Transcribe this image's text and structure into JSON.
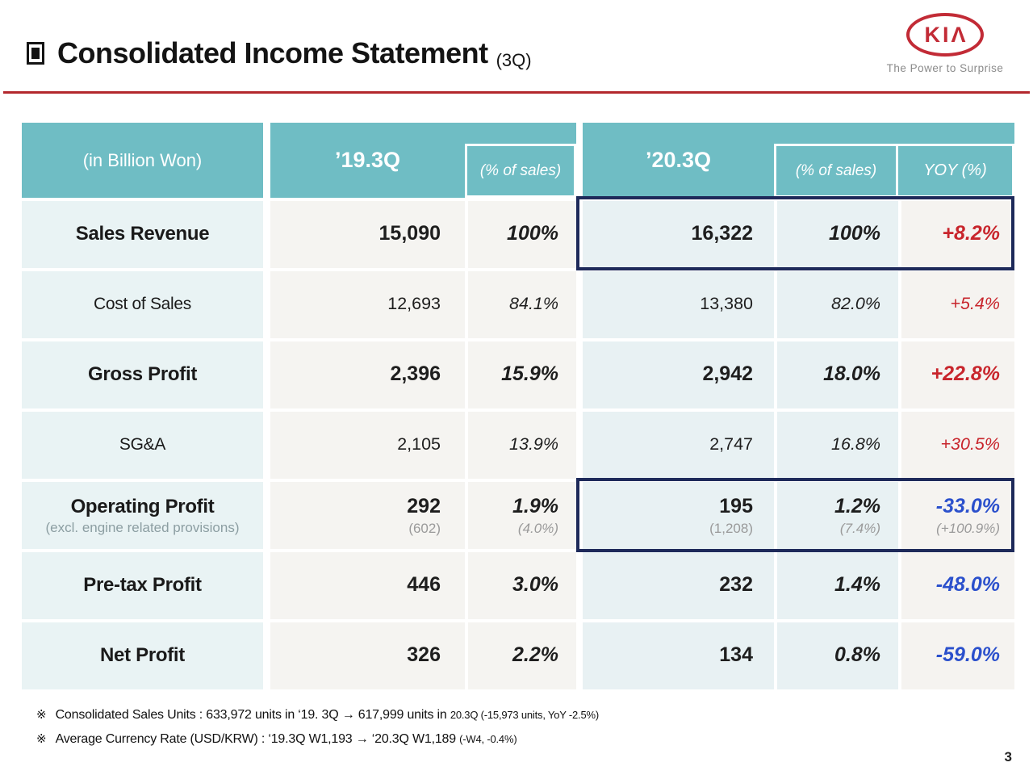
{
  "slide": {
    "title": "Consolidated Income Statement",
    "title_suffix": "(3Q)",
    "page_number": "3",
    "logo": {
      "text": "KIΛ",
      "tagline": "The Power to Surprise"
    }
  },
  "table": {
    "header": {
      "unit_label": "(in Billion Won)",
      "q19_label": "’19.3Q",
      "q19_pct_label": "(% of sales)",
      "q20_label": "’20.3Q",
      "q20_pct_label": "(% of sales)",
      "yoy_label": "YOY (%)"
    },
    "rows": [
      {
        "label": "Sales Revenue",
        "q19_value": "15,090",
        "q19_pct": "100%",
        "q20_value": "16,322",
        "q20_pct": "100%",
        "yoy": "+8.2%",
        "emphasis": true,
        "yoy_direction": "positive",
        "highlighted": true
      },
      {
        "label": "Cost of Sales",
        "q19_value": "12,693",
        "q19_pct": "84.1%",
        "q20_value": "13,380",
        "q20_pct": "82.0%",
        "yoy": "+5.4%",
        "emphasis": false,
        "yoy_direction": "positive",
        "highlighted": false
      },
      {
        "label": "Gross Profit",
        "q19_value": "2,396",
        "q19_pct": "15.9%",
        "q20_value": "2,942",
        "q20_pct": "18.0%",
        "yoy": "+22.8%",
        "emphasis": true,
        "yoy_direction": "positive",
        "highlighted": false
      },
      {
        "label": "SG&A",
        "q19_value": "2,105",
        "q19_pct": "13.9%",
        "q20_value": "2,747",
        "q20_pct": "16.8%",
        "yoy": "+30.5%",
        "emphasis": false,
        "yoy_direction": "positive",
        "highlighted": false
      },
      {
        "label": "Operating Profit",
        "sub_label": "(excl. engine related provisions)",
        "q19_value": "292",
        "q19_value_sub": "(602)",
        "q19_pct": "1.9%",
        "q19_pct_sub": "(4.0%)",
        "q20_value": "195",
        "q20_value_sub": "(1,208)",
        "q20_pct": "1.2%",
        "q20_pct_sub": "(7.4%)",
        "yoy": "-33.0%",
        "yoy_sub": "(+100.9%)",
        "emphasis": true,
        "yoy_direction": "negative",
        "highlighted": true
      },
      {
        "label": "Pre-tax Profit",
        "q19_value": "446",
        "q19_pct": "3.0%",
        "q20_value": "232",
        "q20_pct": "1.4%",
        "yoy": "-48.0%",
        "emphasis": true,
        "yoy_direction": "negative",
        "highlighted": false
      },
      {
        "label": "Net Profit",
        "q19_value": "326",
        "q19_pct": "2.2%",
        "q20_value": "134",
        "q20_pct": "0.8%",
        "yoy": "-59.0%",
        "emphasis": true,
        "yoy_direction": "negative",
        "highlighted": false
      }
    ],
    "footnotes": [
      {
        "marker": "※",
        "main": "Consolidated Sales Units : 633,972 units in ‘19. 3Q  →  617,999 units in ",
        "small": "20.3Q (-15,973 units, YoY -2.5%)"
      },
      {
        "marker": "※",
        "main": "Average Currency Rate (USD/KRW) : ‘19.3Q W1,193  →  ‘20.3Q W1,189  ",
        "small": "(-W4, -0.4%)"
      }
    ]
  },
  "colors": {
    "header_teal": "#6FBDC4",
    "label_cell_bg": "#E9F3F4",
    "q19_cell_bg": "#F5F4F1",
    "q20_cell_bg": "#E8F1F3",
    "yoy_cell_bg": "#F5F3F0",
    "positive_yoy": "#C8252C",
    "negative_yoy": "#2B50CC",
    "highlight_border": "#1E2A5A",
    "divider_red": "#B3282D",
    "kia_red": "#C22B36"
  }
}
